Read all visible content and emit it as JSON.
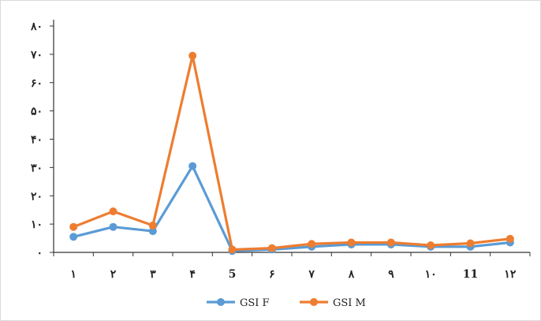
{
  "chart_data": {
    "type": "line",
    "title": "",
    "xlabel": "",
    "ylabel": "",
    "ylim": [
      0,
      80
    ],
    "y_ticks": [
      "۰",
      "۱۰",
      "۲۰",
      "۳۰",
      "۴۰",
      "۵۰",
      "۶۰",
      "۷۰",
      "۸۰"
    ],
    "categories": [
      "۱",
      "۲",
      "۳",
      "۴",
      "5",
      "۶",
      "۷",
      "۸",
      "۹",
      "۱۰",
      "11",
      "۱۲"
    ],
    "series": [
      {
        "name": "GSI F",
        "color": "#5b9bd5",
        "values": [
          5.5,
          9,
          7.5,
          30.5,
          0.5,
          1,
          2,
          2.8,
          2.8,
          2,
          2,
          3.5
        ]
      },
      {
        "name": "GSI M",
        "color": "#ed7d31",
        "values": [
          9,
          14.5,
          9.5,
          69.5,
          1,
          1.5,
          3,
          3.5,
          3.5,
          2.5,
          3.2,
          4.8
        ]
      }
    ],
    "grid": false,
    "legend_position": "bottom"
  }
}
